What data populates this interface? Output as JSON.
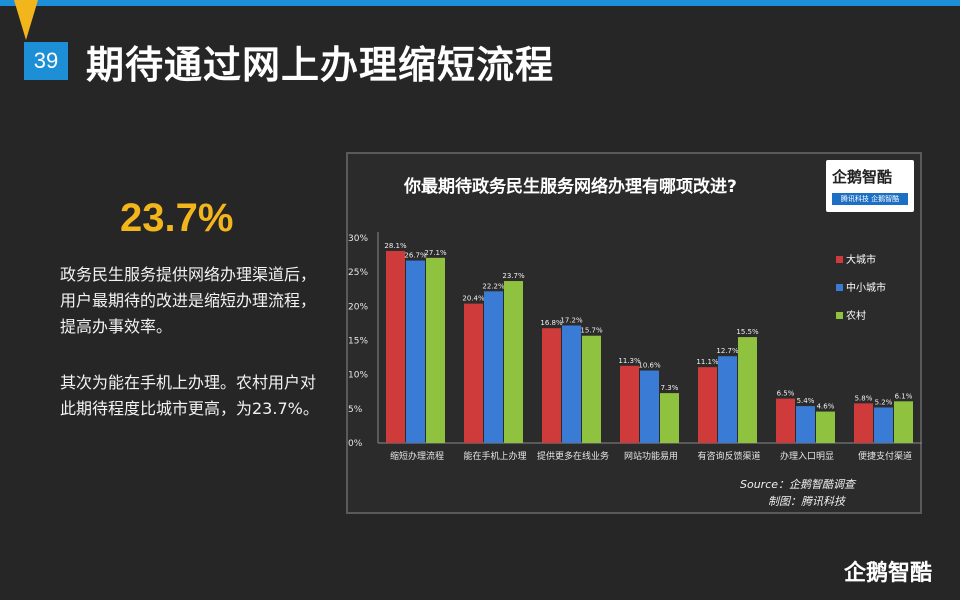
{
  "page_number": "39",
  "page_title": "期待通过网上办理缩短流程",
  "highlight": "23.7%",
  "paragraph1": "政务民生服务提供网络办理渠道后，用户最期待的改进是缩短办理流程，提高办事效率。",
  "paragraph2": "其次为能在手机上办理。农村用户对此期待程度比城市更高，为23.7%。",
  "logo": {
    "name": "企鹅智酷",
    "tagline": "腾讯科技  企鹅智酷"
  },
  "source": "Source：企鹅智酷调查",
  "credit": "制图：腾讯科技",
  "brand": "企鹅智酷",
  "colors": {
    "big_city": "#cf3b3b",
    "small_city": "#3a7bd5",
    "rural": "#8fc23f",
    "accent": "#f2b51c",
    "blue": "#1d8fd6"
  },
  "chart_data": {
    "type": "bar",
    "title": "你最期待政务民生服务网络办理有哪项改进?",
    "categories": [
      "缩短办理流程",
      "能在手机上办理",
      "提供更多在线业务",
      "网站功能易用",
      "有咨询反馈渠道",
      "办理入口明显",
      "便捷支付渠道"
    ],
    "series": [
      {
        "name": "大城市",
        "values": [
          28.1,
          20.4,
          16.8,
          11.3,
          11.1,
          6.5,
          5.8
        ],
        "labels": [
          "28.1%",
          "20.4%",
          "16.8%",
          "11.3%",
          "11.1%",
          "6.5%",
          "5.8%"
        ]
      },
      {
        "name": "中小城市",
        "values": [
          26.7,
          22.2,
          17.2,
          10.6,
          12.7,
          5.4,
          5.2
        ],
        "labels": [
          "26.7%",
          "22.2%",
          "17.2%",
          "10.6%",
          "12.7%",
          "5.4%",
          "5.2%"
        ]
      },
      {
        "name": "农村",
        "values": [
          27.1,
          23.7,
          15.7,
          7.3,
          15.5,
          4.6,
          6.1
        ],
        "labels": [
          "27.1%",
          "23.7%",
          "15.7%",
          "7.3%",
          "15.5%",
          "4.6%",
          "6.1%"
        ]
      }
    ],
    "yticks": [
      "0%",
      "5%",
      "10%",
      "15%",
      "20%",
      "25%",
      "30%"
    ],
    "ylim": [
      0,
      30
    ],
    "legend_position": "right",
    "grid": false
  }
}
